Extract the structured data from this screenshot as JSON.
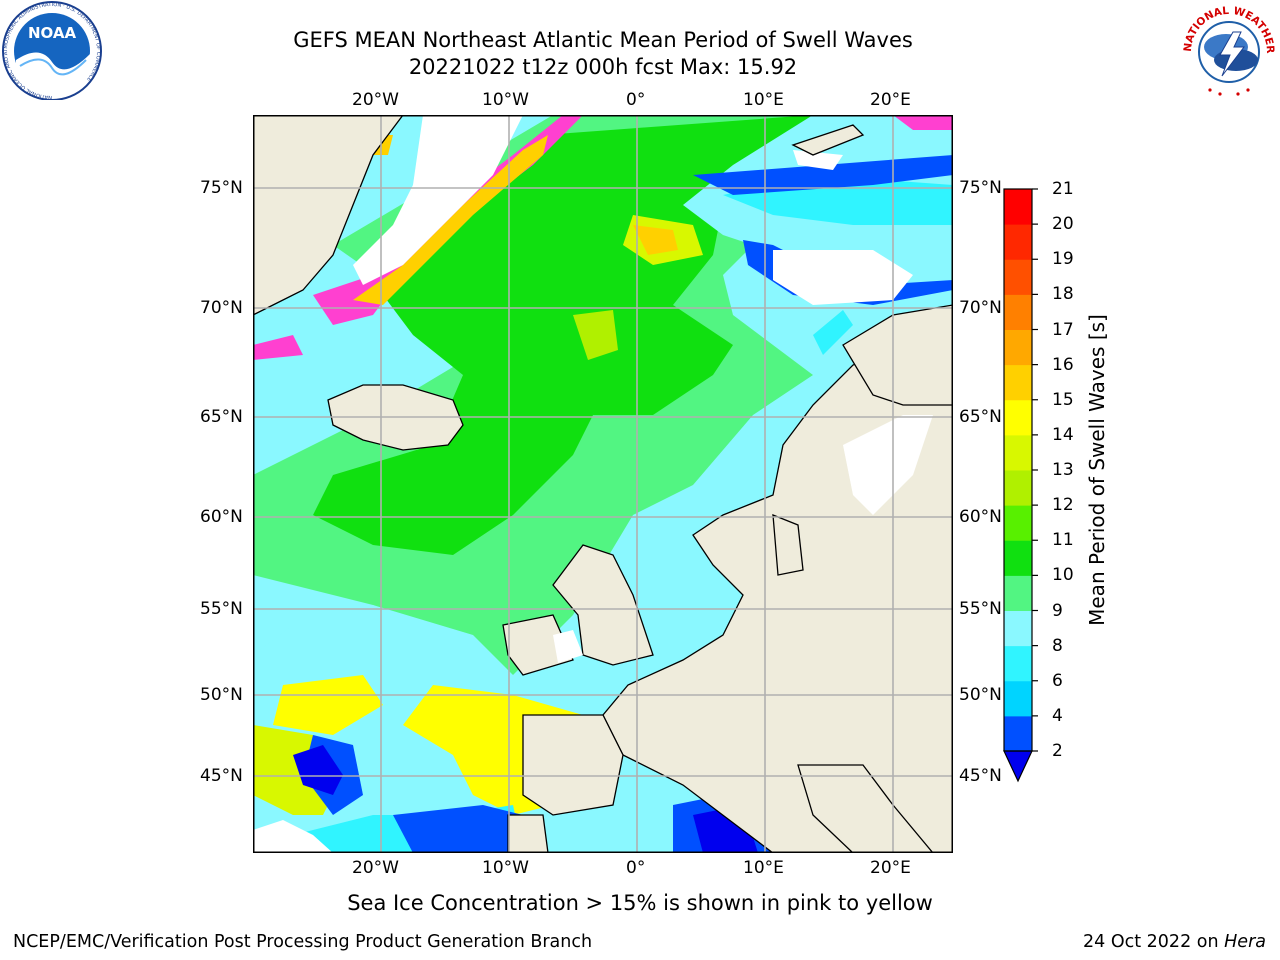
{
  "header": {
    "title_line1": "GEFS MEAN Northeast Atlantic Mean Period of Swell Waves",
    "title_line2": "20221022 t12z 000h fcst   Max: 15.92"
  },
  "logos": {
    "left": "NOAA",
    "left_ring_text": "NATIONAL OCEANIC AND ATMOSPHERIC ADMINISTRATION · U.S. DEPARTMENT OF COMMERCE",
    "right_ring_text": "NATIONAL WEATHER SERVICE"
  },
  "map": {
    "lon_labels": [
      "20°W",
      "10°W",
      "0°",
      "10°E",
      "20°E"
    ],
    "lat_labels": [
      "75°N",
      "70°N",
      "65°N",
      "60°N",
      "55°N",
      "50°N",
      "45°N"
    ],
    "colors": {
      "ocean_base": "#8af8ff",
      "land": "#efecdc",
      "coast": "#000000",
      "grid": "#b0b0b0"
    }
  },
  "colorbar": {
    "label": "Mean Period of Swell Waves [s]",
    "ticks": [
      "21",
      "20",
      "19",
      "18",
      "17",
      "16",
      "15",
      "14",
      "13",
      "12",
      "11",
      "10",
      "9",
      "8",
      "6",
      "4",
      "2"
    ],
    "colors_bottom_to_top": [
      "#0050ff",
      "#00d4ff",
      "#30f4ff",
      "#8af8ff",
      "#52f582",
      "#10e010",
      "#58f000",
      "#b0f000",
      "#d8f800",
      "#ffff00",
      "#ffd000",
      "#ffa800",
      "#ff8000",
      "#ff5000",
      "#ff2800",
      "#ff0000"
    ],
    "extend_color": "#0000ee"
  },
  "annotation": "Sea Ice Concentration > 15% is shown in pink to yellow",
  "footer": {
    "left": "NCEP/EMC/Verification Post Processing Product Generation Branch",
    "right_date": "24 Oct 2022 on ",
    "right_host": "Hera"
  }
}
